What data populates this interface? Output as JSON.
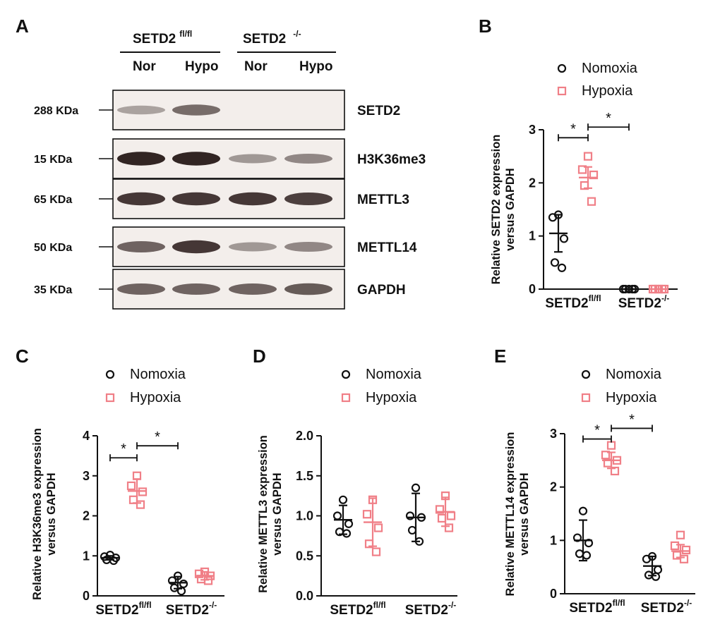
{
  "colors": {
    "nomoxia": "#111111",
    "hypoxia": "#f07f87",
    "band": "#2a1c1a",
    "blot_bg": "#f3eeeb"
  },
  "blot": {
    "panel_letter": "A",
    "group1": {
      "name": "SETD2",
      "sup": "fl/fl"
    },
    "group2": {
      "name": "SETD2",
      "sup": "-/-"
    },
    "lanes": [
      "Nor",
      "Hypo",
      "Nor",
      "Hypo"
    ],
    "rows": [
      {
        "protein": "SETD2",
        "kda": "288 KDa",
        "intensity": [
          0.25,
          0.55,
          0.0,
          0.0
        ]
      },
      {
        "protein": "H3K36me3",
        "kda": "15 KDa",
        "intensity": [
          0.95,
          0.95,
          0.3,
          0.4
        ]
      },
      {
        "protein": "METTL3",
        "kda": "65 KDa",
        "intensity": [
          0.85,
          0.85,
          0.85,
          0.8
        ]
      },
      {
        "protein": "METTL14",
        "kda": "50 KDa",
        "intensity": [
          0.6,
          0.85,
          0.3,
          0.4
        ]
      },
      {
        "protein": "GAPDH",
        "kda": "35 KDa",
        "intensity": [
          0.6,
          0.6,
          0.6,
          0.65
        ]
      }
    ]
  },
  "chart_data": [
    {
      "panel": "B",
      "type": "scatter",
      "ylabel": [
        "Relative SETD2 expression",
        "versus GAPDH"
      ],
      "ylim": [
        0,
        3
      ],
      "yticks": [
        "0",
        "1",
        "2",
        "3"
      ],
      "legend": [
        "Nomoxia",
        "Hypoxia"
      ],
      "groups": [
        {
          "name": "SETD2",
          "sup": "fl/fl"
        },
        {
          "name": "SETD2",
          "sup": "-/-"
        }
      ],
      "series": [
        {
          "name": "Nomoxia",
          "means": [
            1.05,
            0.0
          ],
          "sds": [
            0.35,
            0.0
          ],
          "points": [
            [
              1.4,
              1.35,
              0.95,
              0.5,
              0.4
            ],
            [
              0.0,
              0.0,
              0.0,
              0.0,
              0.0
            ]
          ]
        },
        {
          "name": "Hypoxia",
          "means": [
            2.1,
            0.0
          ],
          "sds": [
            0.2,
            0.0
          ],
          "points": [
            [
              2.5,
              2.25,
              2.15,
              1.95,
              1.65
            ],
            [
              0.0,
              0.0,
              0.0,
              0.0,
              0.0
            ]
          ]
        }
      ],
      "significance": [
        {
          "text": "*",
          "from": [
            0,
            0
          ],
          "to": [
            0,
            1
          ],
          "y": 2.85
        },
        {
          "text": "*",
          "from": [
            0,
            1
          ],
          "to": [
            1,
            0
          ],
          "y": 3.05
        }
      ]
    },
    {
      "panel": "C",
      "type": "scatter",
      "ylabel": [
        "Relative H3K36me3 expression",
        "versus GAPDH"
      ],
      "ylim": [
        0,
        4
      ],
      "yticks": [
        "0",
        "1",
        "2",
        "3",
        "4"
      ],
      "legend": [
        "Nomoxia",
        "Hypoxia"
      ],
      "groups": [
        {
          "name": "SETD2",
          "sup": "fl/fl"
        },
        {
          "name": "SETD2",
          "sup": "-/-"
        }
      ],
      "series": [
        {
          "name": "Nomoxia",
          "means": [
            0.95,
            0.33
          ],
          "sds": [
            0.05,
            0.15
          ],
          "points": [
            [
              1.02,
              0.98,
              0.95,
              0.9,
              0.88
            ],
            [
              0.5,
              0.38,
              0.3,
              0.2,
              0.12
            ]
          ]
        },
        {
          "name": "Hypoxia",
          "means": [
            2.62,
            0.5
          ],
          "sds": [
            0.3,
            0.1
          ],
          "points": [
            [
              3.0,
              2.75,
              2.6,
              2.4,
              2.28
            ],
            [
              0.6,
              0.55,
              0.5,
              0.42,
              0.38
            ]
          ]
        }
      ],
      "significance": [
        {
          "text": "*",
          "from": [
            0,
            0
          ],
          "to": [
            0,
            1
          ],
          "y": 3.45
        },
        {
          "text": "*",
          "from": [
            0,
            1
          ],
          "to": [
            1,
            0
          ],
          "y": 3.75
        }
      ]
    },
    {
      "panel": "D",
      "type": "scatter",
      "ylabel": [
        "Relative METTL3 expression",
        "versus GAPDH"
      ],
      "ylim": [
        0,
        2
      ],
      "yticks": [
        "0.0",
        "0.5",
        "1.0",
        "1.5",
        "2.0"
      ],
      "legend": [
        "Nomoxia",
        "Hypoxia"
      ],
      "groups": [
        {
          "name": "SETD2",
          "sup": "fl/fl"
        },
        {
          "name": "SETD2",
          "sup": "-/-"
        }
      ],
      "series": [
        {
          "name": "Nomoxia",
          "means": [
            0.95,
            0.98
          ],
          "sds": [
            0.18,
            0.3
          ],
          "points": [
            [
              1.2,
              1.0,
              0.9,
              0.8,
              0.78
            ],
            [
              1.35,
              1.0,
              0.98,
              0.82,
              0.68
            ]
          ]
        },
        {
          "name": "Hypoxia",
          "means": [
            0.92,
            1.05
          ],
          "sds": [
            0.3,
            0.18
          ],
          "points": [
            [
              1.2,
              1.02,
              0.85,
              0.65,
              0.55
            ],
            [
              1.25,
              1.08,
              1.0,
              0.97,
              0.85
            ]
          ]
        }
      ],
      "significance": []
    },
    {
      "panel": "E",
      "type": "scatter",
      "ylabel": [
        "Relative METTL14 expression",
        "versus GAPDH"
      ],
      "ylim": [
        0,
        3
      ],
      "yticks": [
        "0",
        "1",
        "2",
        "3"
      ],
      "legend": [
        "Nomoxia",
        "Hypoxia"
      ],
      "groups": [
        {
          "name": "SETD2",
          "sup": "fl/fl"
        },
        {
          "name": "SETD2",
          "sup": "-/-"
        }
      ],
      "series": [
        {
          "name": "Nomoxia",
          "means": [
            1.0,
            0.52
          ],
          "sds": [
            0.38,
            0.18
          ],
          "points": [
            [
              1.55,
              1.05,
              0.95,
              0.75,
              0.72
            ],
            [
              0.7,
              0.65,
              0.45,
              0.35,
              0.32
            ]
          ]
        },
        {
          "name": "Hypoxia",
          "means": [
            2.5,
            0.8
          ],
          "sds": [
            0.15,
            0.12
          ],
          "points": [
            [
              2.78,
              2.6,
              2.5,
              2.45,
              2.3
            ],
            [
              1.1,
              0.9,
              0.82,
              0.72,
              0.65
            ]
          ]
        }
      ],
      "significance": [
        {
          "text": "*",
          "from": [
            0,
            0
          ],
          "to": [
            0,
            1
          ],
          "y": 2.9
        },
        {
          "text": "*",
          "from": [
            0,
            1
          ],
          "to": [
            1,
            0
          ],
          "y": 3.1
        }
      ]
    }
  ]
}
